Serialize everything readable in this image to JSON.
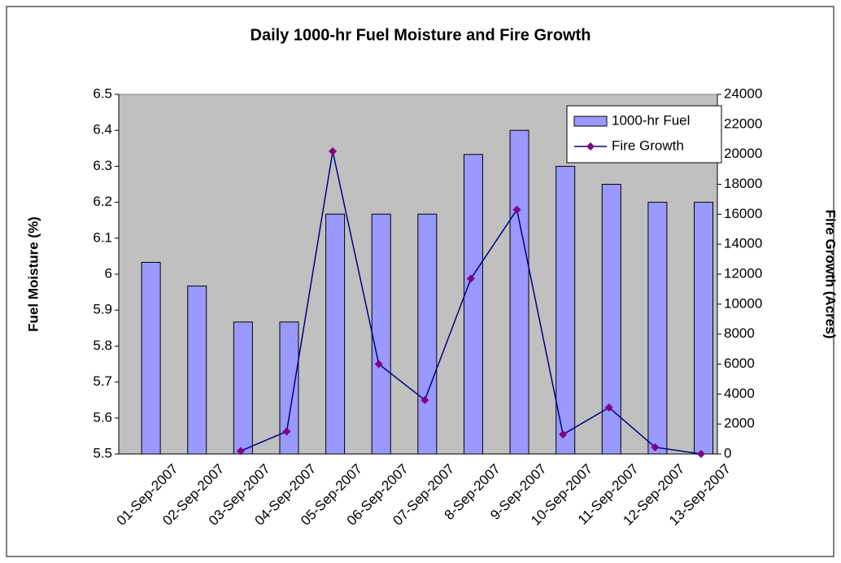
{
  "chart_data": {
    "type": "bar-line",
    "title": "Daily 1000-hr Fuel Moisture and Fire Growth",
    "ylabel": "Fuel Moisture (%)",
    "y2label": "Fire Growth (Acres)",
    "categories": [
      "01-Sep-2007",
      "02-Sep-2007",
      "03-Sep-2007",
      "04-Sep-2007",
      "05-Sep-2007",
      "06-Sep-2007",
      "07-Sep-2007",
      "8-Sep-2007",
      "9-Sep-2007",
      "10-Sep-2007",
      "11-Sep-2007",
      "12-Sep-2007",
      "13-Sep-2007"
    ],
    "series": [
      {
        "name": "1000-hr Fuel",
        "kind": "bar",
        "color": "#9999ff",
        "values": [
          6.033,
          5.967,
          5.867,
          5.867,
          6.167,
          6.167,
          6.167,
          6.333,
          6.4,
          6.3,
          6.25,
          6.2,
          6.2
        ]
      },
      {
        "name": "Fire Growth",
        "kind": "line",
        "axis": "y2",
        "color": "#000080",
        "marker_color": "#800080",
        "values": [
          null,
          null,
          200,
          1500,
          20200,
          6000,
          3600,
          11700,
          16300,
          1300,
          3100,
          450,
          0
        ]
      }
    ],
    "ylim": [
      5.5,
      6.5
    ],
    "yticks": [
      5.5,
      5.6,
      5.7,
      5.8,
      5.9,
      6,
      6.1,
      6.2,
      6.3,
      6.4,
      6.5
    ],
    "y2lim": [
      0,
      24000
    ],
    "y2ticks": [
      0,
      2000,
      4000,
      6000,
      8000,
      10000,
      12000,
      14000,
      16000,
      18000,
      20000,
      22000,
      24000
    ],
    "legend": "upper right"
  }
}
